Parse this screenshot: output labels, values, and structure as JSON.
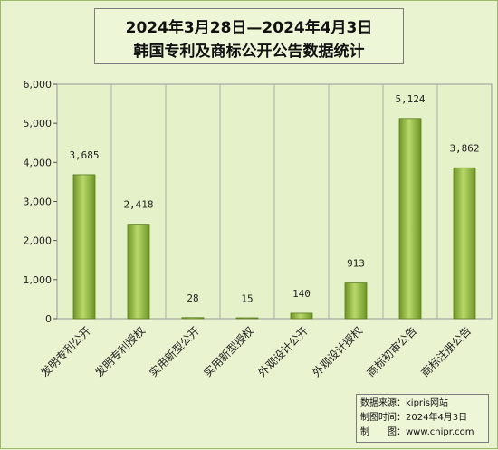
{
  "chart_data": {
    "type": "bar",
    "title": "2024年3月28日—2024年4月3日",
    "subtitle": "韩国专利及商标公开公告数据统计",
    "categories": [
      "发明专利公开",
      "发明专利授权",
      "实用新型公开",
      "实用新型授权",
      "外观设计公开",
      "外观设计授权",
      "商标初审公告",
      "商标注册公告"
    ],
    "values": [
      3685,
      2418,
      28,
      15,
      140,
      913,
      5124,
      3862
    ],
    "value_labels": [
      "3,685",
      "2,418",
      "28",
      "15",
      "140",
      "913",
      "5,124",
      "3,862"
    ],
    "ylim": [
      0,
      6000
    ],
    "yticks": [
      0,
      1000,
      2000,
      3000,
      4000,
      5000,
      6000
    ],
    "ytick_labels": [
      "0",
      "1,000",
      "2,000",
      "3,000",
      "4,000",
      "5,000",
      "6,000"
    ],
    "grid": "vertical category dividers",
    "bar_color": "#8db43a"
  },
  "source_box": {
    "line1": "数据来源：kipris网站",
    "line2": "制图时间：2024年4月3日",
    "line3": "制　　图：www.cnipr.com"
  }
}
